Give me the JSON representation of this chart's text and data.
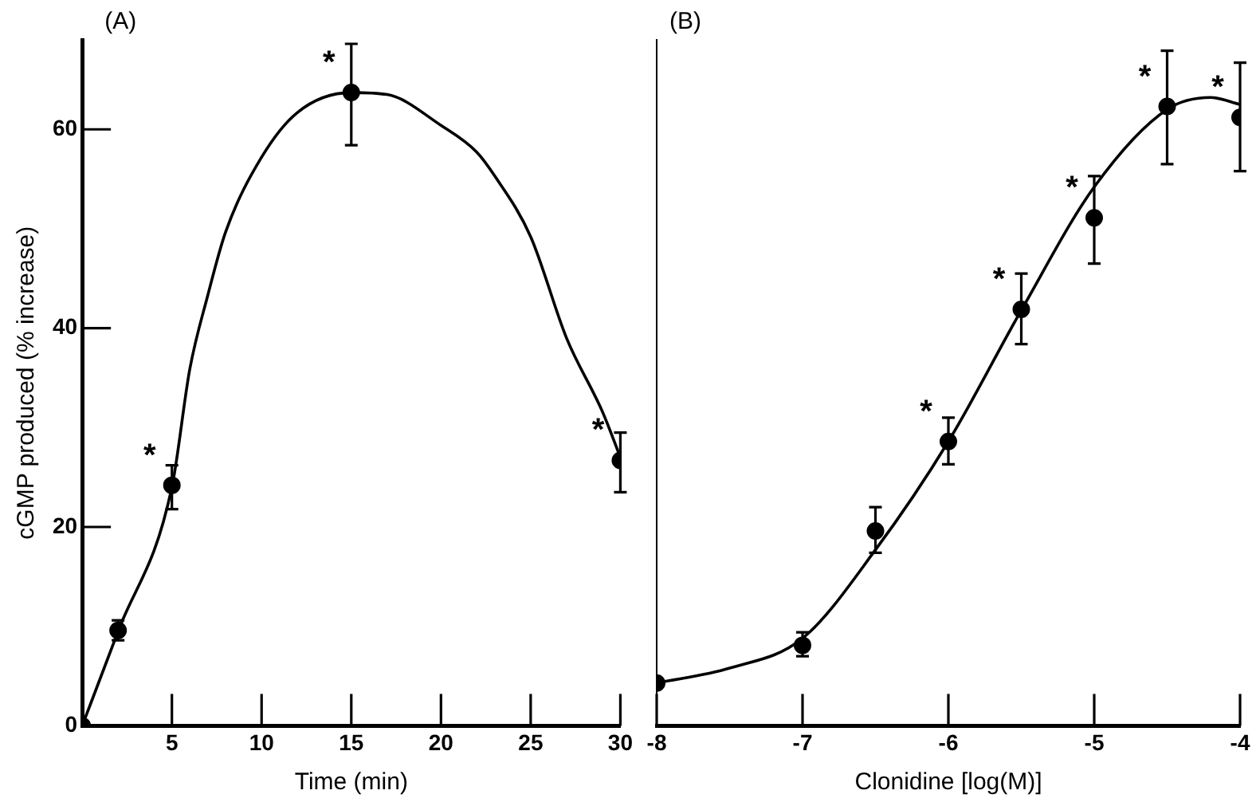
{
  "chart_data": [
    {
      "type": "scatter",
      "title": "(A)",
      "xlabel": "Time (min)",
      "ylabel": "cGMP produced (% increase)",
      "xlim": [
        0,
        30
      ],
      "xticks": [
        5,
        10,
        15,
        20,
        25,
        30
      ],
      "ylim": [
        0,
        69
      ],
      "yticks": [
        0,
        20,
        40,
        60
      ],
      "marker": "circle",
      "legend": false,
      "grid": false,
      "series": [
        {
          "type": "scatter",
          "color": "#000000",
          "x": [
            0,
            2,
            5,
            15,
            30
          ],
          "values": [
            0,
            9.6,
            24.2,
            63.7,
            26.7
          ],
          "errors": [
            null,
            [
              8.6,
              10.6
            ],
            [
              21.8,
              26.2
            ],
            [
              58.4,
              68.6
            ],
            [
              23.5,
              29.5
            ]
          ]
        },
        {
          "type": "line",
          "color": "#000000",
          "marker": "none",
          "x": [
            0,
            2,
            5,
            6,
            7,
            8,
            10,
            12,
            15,
            17,
            20,
            22,
            23,
            25,
            27,
            29,
            30
          ],
          "values": [
            0,
            9.5,
            24,
            35.9,
            43.3,
            49.7,
            57.2,
            61.7,
            63.7,
            63.5,
            60.4,
            57.7,
            55.3,
            49.2,
            39,
            31.6,
            27
          ]
        }
      ],
      "annotations": [
        {
          "text": "*",
          "x": 5,
          "y": 24.2
        },
        {
          "text": "*",
          "x": 15,
          "y": 63.7
        },
        {
          "text": "*",
          "x": 30,
          "y": 26.7
        }
      ]
    },
    {
      "type": "scatter",
      "title": "(B)",
      "xlabel": "Clonidine [log(M)]",
      "xlim": [
        -8,
        -4
      ],
      "xticks": [
        -8,
        -7,
        -6,
        -5,
        -4
      ],
      "ylim": [
        0,
        69
      ],
      "yticks": [
        0,
        20,
        40,
        60
      ],
      "tick_labels": "x",
      "marker": "circle",
      "legend": false,
      "grid": false,
      "series": [
        {
          "type": "scatter",
          "color": "#000000",
          "x": [
            -8,
            -7,
            -6.5,
            -6,
            -5.5,
            -5,
            -4.5,
            -4
          ],
          "values": [
            4.3,
            8.1,
            19.6,
            28.6,
            41.9,
            51.1,
            62.3,
            61.2
          ],
          "errors": [
            null,
            [
              7,
              9.4
            ],
            [
              17.4,
              22
            ],
            [
              26.3,
              31
            ],
            [
              38.4,
              45.5
            ],
            [
              46.5,
              55.3
            ],
            [
              56.5,
              67.9
            ],
            [
              55.8,
              66.7
            ]
          ]
        },
        {
          "type": "line",
          "color": "#000000",
          "marker": "none",
          "x": [
            -8,
            -7.5,
            -7,
            -6.5,
            -6,
            -5.5,
            -5,
            -4.5,
            -4.2,
            -4
          ],
          "values": [
            4.3,
            5.8,
            8.8,
            17.7,
            28.6,
            41.8,
            54.2,
            62,
            63.2,
            62.5
          ]
        }
      ],
      "annotations": [
        {
          "text": "*",
          "x": -6,
          "y": 28.6
        },
        {
          "text": "*",
          "x": -5.5,
          "y": 41.9
        },
        {
          "text": "*",
          "x": -5,
          "y": 51.1
        },
        {
          "text": "*",
          "x": -4.5,
          "y": 62.3
        },
        {
          "text": "*",
          "x": -4,
          "y": 61.2
        }
      ]
    }
  ]
}
